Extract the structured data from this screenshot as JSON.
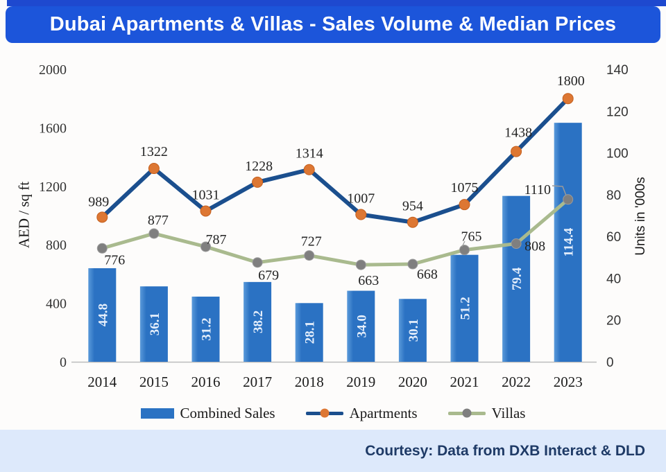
{
  "title": "Dubai Apartments & Villas - Sales Volume & Median Prices",
  "footer": {
    "credit": "Courtesy: Data from DXB Interact & DLD"
  },
  "chart_data": {
    "type": "combo-bar-line",
    "categories": [
      "2014",
      "2015",
      "2016",
      "2017",
      "2018",
      "2019",
      "2020",
      "2021",
      "2022",
      "2023"
    ],
    "series": [
      {
        "name": "Combined Sales",
        "kind": "bar",
        "axis": "right",
        "color": "#2b72c3",
        "color_light": "#5a9ada",
        "label_color": "#e4eefb",
        "values": [
          44.8,
          36.1,
          31.2,
          38.2,
          28.1,
          34.0,
          30.1,
          51.2,
          79.4,
          114.4
        ]
      },
      {
        "name": "Apartments",
        "kind": "line",
        "axis": "left",
        "color": "#1b4f8e",
        "marker_color": "#dd7733",
        "marker_edge": "#c4601f",
        "values": [
          989,
          1322,
          1031,
          1228,
          1314,
          1007,
          954,
          1075,
          1438,
          1800
        ]
      },
      {
        "name": "Villas",
        "kind": "line",
        "axis": "left",
        "color": "#a9ba8e",
        "marker_color": "#7f7f7f",
        "marker_edge": "#9b9b9b",
        "values": [
          776,
          877,
          787,
          679,
          727,
          663,
          668,
          765,
          808,
          1110
        ]
      }
    ],
    "left_axis": {
      "title": "AED / sq ft",
      "min": 0,
      "max": 2000,
      "ticks": [
        0,
        400,
        800,
        1200,
        1600,
        2000
      ]
    },
    "right_axis": {
      "title": "Units in '000s",
      "min": 0,
      "max": 140,
      "ticks": [
        0,
        20,
        40,
        60,
        80,
        100,
        120,
        140
      ]
    },
    "legend": {
      "position": "bottom",
      "items": [
        "Combined Sales",
        "Apartments",
        "Villas"
      ]
    },
    "grid": "off",
    "label_text_color": "#242424",
    "axis_line_color": "#bcbcbc"
  }
}
